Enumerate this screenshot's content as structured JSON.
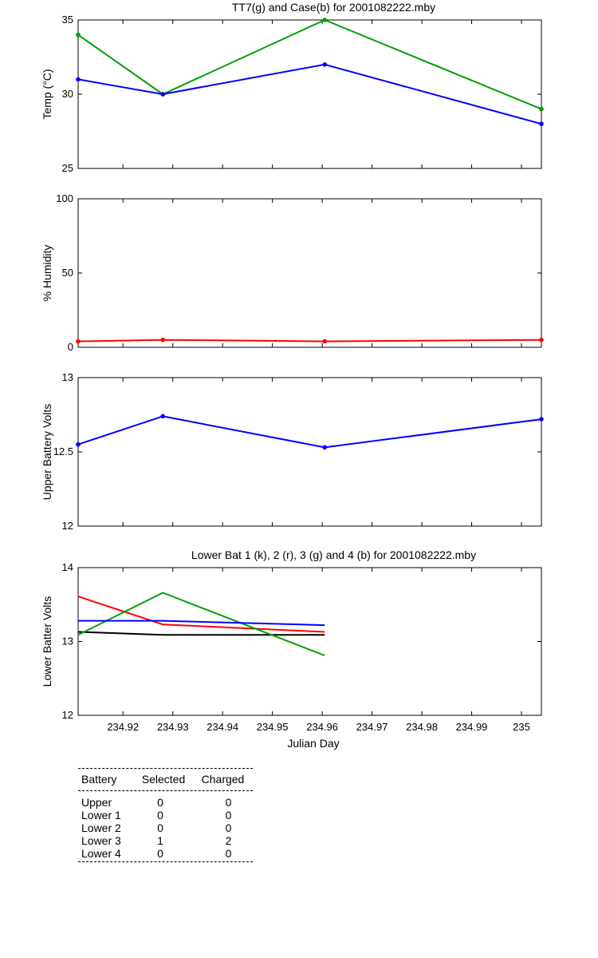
{
  "chart_data": [
    {
      "type": "line",
      "title": "TT7(g) and Case(b) for 2001082222.mby",
      "ylabel": "Temp  (°C)",
      "xlabel": "",
      "xlim": [
        234.911,
        235.004
      ],
      "ylim": [
        25,
        35
      ],
      "yticks": [
        "25",
        "30",
        "35"
      ],
      "grid": false,
      "series": [
        {
          "name": "TT7",
          "color": "#00a000",
          "marker": "dot",
          "x": [
            234.911,
            234.928,
            234.9605,
            235.004
          ],
          "y": [
            34,
            30,
            35,
            29
          ]
        },
        {
          "name": "Case",
          "color": "#0000ff",
          "marker": "dot",
          "x": [
            234.911,
            234.928,
            234.9605,
            235.004
          ],
          "y": [
            31,
            30,
            32,
            28
          ]
        }
      ]
    },
    {
      "type": "line",
      "title": "",
      "ylabel": "% Humidity",
      "xlabel": "",
      "xlim": [
        234.911,
        235.004
      ],
      "ylim": [
        0,
        100
      ],
      "yticks": [
        "0",
        "50",
        "100"
      ],
      "grid": false,
      "series": [
        {
          "color": "#ff0000",
          "marker": "dot",
          "x": [
            234.911,
            234.928,
            234.9605,
            235.004
          ],
          "y": [
            4,
            5,
            4,
            5
          ]
        }
      ]
    },
    {
      "type": "line",
      "title": "",
      "ylabel": "Upper Battery Volts",
      "xlabel": "",
      "xlim": [
        234.911,
        235.004
      ],
      "ylim": [
        12,
        13
      ],
      "yticks": [
        "12",
        "12.5",
        "13"
      ],
      "grid": false,
      "series": [
        {
          "color": "#0000ff",
          "marker": "dot",
          "x": [
            234.911,
            234.928,
            234.9605,
            235.004
          ],
          "y": [
            12.55,
            12.74,
            12.53,
            12.72
          ]
        }
      ]
    },
    {
      "type": "line",
      "title": "Lower Bat 1 (k), 2 (r), 3 (g) and 4 (b) for 2001082222.mby",
      "ylabel": "Lower Batter Volts",
      "xlabel": "Julian Day",
      "xlim": [
        234.911,
        235.004
      ],
      "ylim": [
        12,
        14
      ],
      "yticks": [
        "12",
        "13",
        "14"
      ],
      "xticks": [
        "234.92",
        "234.93",
        "234.94",
        "234.95",
        "234.96",
        "234.97",
        "234.98",
        "234.99",
        "235"
      ],
      "xtick_values": [
        234.92,
        234.93,
        234.94,
        234.95,
        234.96,
        234.97,
        234.98,
        234.99,
        235.0
      ],
      "grid": false,
      "series": [
        {
          "color": "#000000",
          "marker": "none",
          "x": [
            234.911,
            234.928,
            234.9605
          ],
          "y": [
            13.13,
            13.09,
            13.09
          ]
        },
        {
          "color": "#ff0000",
          "marker": "none",
          "x": [
            234.911,
            234.928,
            234.9605
          ],
          "y": [
            13.61,
            13.23,
            13.13
          ]
        },
        {
          "color": "#00a000",
          "marker": "none",
          "x": [
            234.911,
            234.928,
            234.9605
          ],
          "y": [
            13.09,
            13.66,
            12.81
          ]
        },
        {
          "color": "#0000ff",
          "marker": "none",
          "x": [
            234.911,
            234.928,
            234.9605
          ],
          "y": [
            13.28,
            13.28,
            13.22
          ]
        }
      ]
    }
  ],
  "status_table": {
    "headers": [
      "Battery",
      "Selected",
      "Charged"
    ],
    "rows": [
      [
        "Upper",
        "0",
        "0"
      ],
      [
        "Lower 1",
        "0",
        "0"
      ],
      [
        "Lower 2",
        "0",
        "0"
      ],
      [
        "Lower 3",
        "1",
        "2"
      ],
      [
        "Lower 4",
        "0",
        "0"
      ]
    ]
  }
}
